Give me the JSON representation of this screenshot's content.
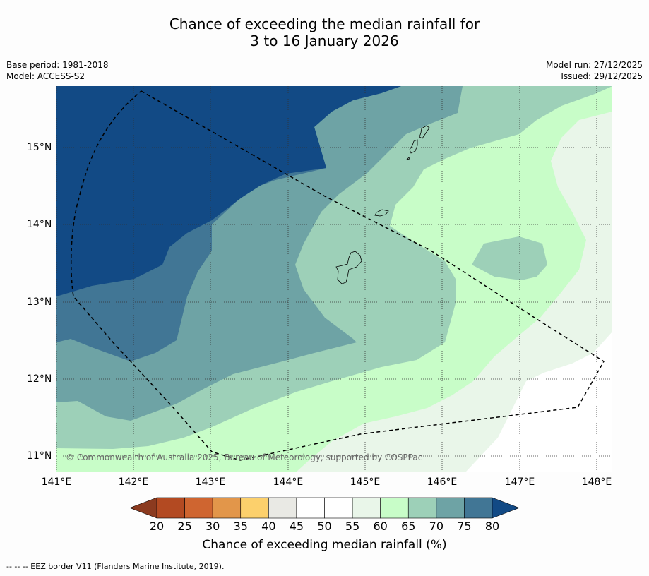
{
  "title": {
    "line1": "Chance of exceeding the median rainfall for",
    "line2": "3 to 16 January 2026"
  },
  "meta": {
    "base_period": "Base period: 1981-2018",
    "model": "Model: ACCESS-S2",
    "model_run": "Model run: 27/12/2025",
    "issued": "Issued: 29/12/2025"
  },
  "map": {
    "lat_labels": [
      "15°N",
      "14°N",
      "13°N",
      "12°N",
      "11°N"
    ],
    "lon_labels": [
      "141°E",
      "142°E",
      "143°E",
      "144°E",
      "145°E",
      "146°E",
      "147°E",
      "148°E"
    ],
    "copyright": "© Commonwealth of Australia 2025, Bureau of Meteorology, supported by COSPPac",
    "region": "Guam / Northern Mariana Islands"
  },
  "colorbar": {
    "ticks": [
      "20",
      "25",
      "30",
      "35",
      "40",
      "45",
      "50",
      "55",
      "60",
      "65",
      "70",
      "75",
      "80"
    ],
    "colors": [
      "#8b3a1f",
      "#b34a22",
      "#cf6530",
      "#e2964a",
      "#fcd06c",
      "#e9e9e4",
      "#ffffff",
      "#ffffff",
      "#e9f6e9",
      "#c8fdc8",
      "#9dd0b8",
      "#6ea3a5",
      "#417695",
      "#124a85"
    ],
    "label": "Chance of exceeding median rainfall (%)"
  },
  "legend": {
    "eez": "--  --  -- EEZ border V11 (Flanders Marine Institute, 2019)."
  }
}
